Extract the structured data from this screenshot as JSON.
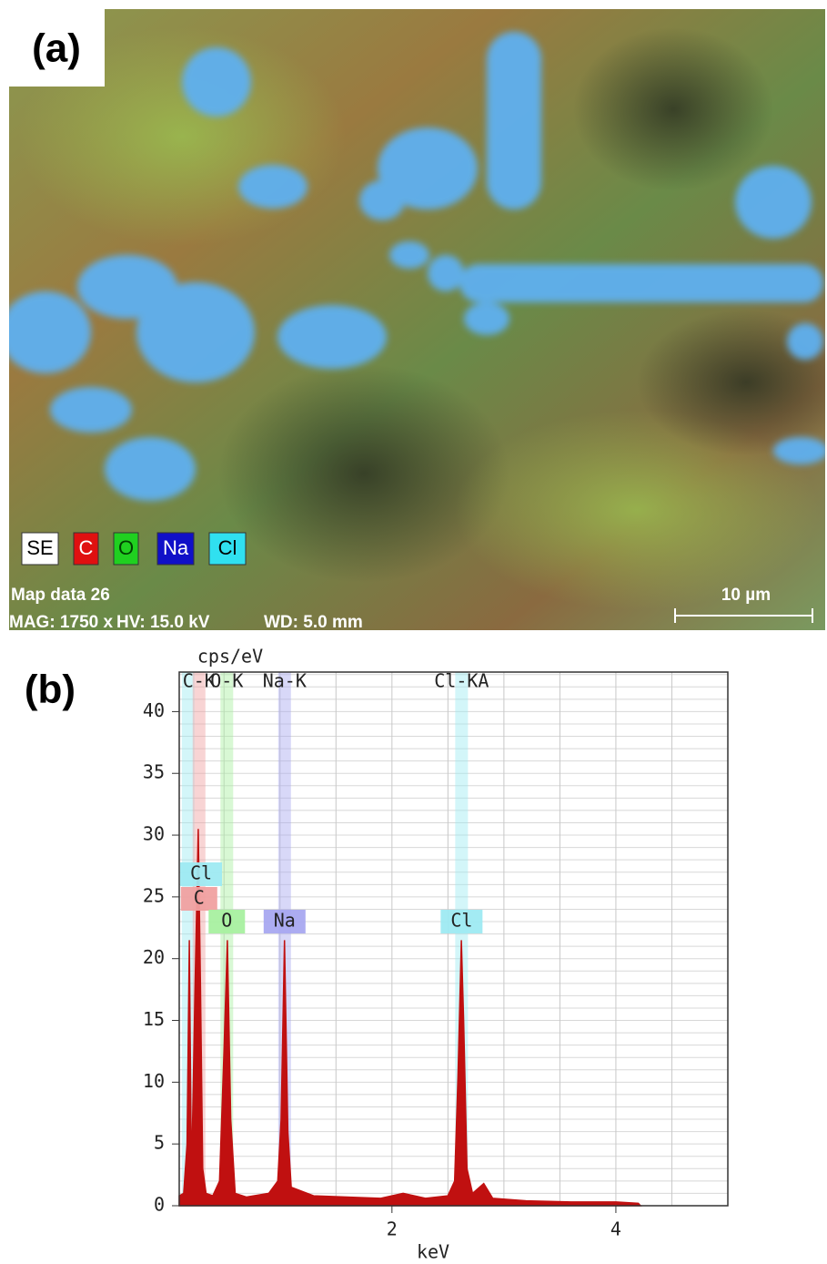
{
  "panel_a": {
    "label": "(a)",
    "legend": [
      {
        "text": "SE",
        "color": "#ffffff"
      },
      {
        "text": "C",
        "color": "#e01010"
      },
      {
        "text": "O",
        "color": "#20d020"
      },
      {
        "text": "Na",
        "color": "#1010c8"
      },
      {
        "text": "Cl",
        "color": "#30e0f0"
      }
    ],
    "map_title": "Map data 26",
    "mag": "MAG: 1750 x",
    "hv": "HV: 15.0 kV",
    "wd": "WD: 5.0 mm",
    "scale_bar": "10 µm"
  },
  "chart_data": {
    "type": "area",
    "panel_label": "(b)",
    "y_label": "cps/eV",
    "x_label": "keV",
    "xlim": [
      0.1,
      5.0
    ],
    "ylim": [
      0,
      43.2
    ],
    "xticks": [
      2,
      4
    ],
    "yticks": [
      0,
      5,
      10,
      15,
      20,
      25,
      30,
      35,
      40
    ],
    "grid": true,
    "xgrid": [
      0.5,
      1,
      1.5,
      2,
      2.5,
      3,
      3.5,
      4,
      4.5
    ],
    "ygrid": [
      1,
      2,
      3,
      4,
      5,
      6,
      7,
      8,
      9,
      10,
      11,
      12,
      13,
      14,
      15,
      16,
      17,
      18,
      19,
      20,
      21,
      22,
      23,
      24,
      25,
      26,
      27,
      28,
      29,
      30,
      31,
      32,
      33,
      34,
      35,
      36,
      37,
      38,
      39,
      40,
      41,
      42,
      43
    ],
    "color": "#c01010",
    "x": [
      0.1,
      0.14,
      0.17,
      0.19,
      0.21,
      0.24,
      0.27,
      0.29,
      0.31,
      0.34,
      0.4,
      0.46,
      0.5,
      0.53,
      0.56,
      0.6,
      0.7,
      0.9,
      0.98,
      1.01,
      1.04,
      1.07,
      1.1,
      1.3,
      1.6,
      1.9,
      2.1,
      2.3,
      2.5,
      2.56,
      2.59,
      2.62,
      2.64,
      2.67,
      2.72,
      2.82,
      2.9,
      3.2,
      3.6,
      4.0,
      4.2,
      4.22
    ],
    "values": [
      0.8,
      1,
      5,
      21.5,
      2,
      17,
      30.5,
      17.5,
      3,
      1,
      0.8,
      2,
      12.5,
      21.5,
      7,
      1,
      0.7,
      1,
      2,
      7,
      21.5,
      6,
      1.5,
      0.8,
      0.7,
      0.6,
      1,
      0.6,
      0.8,
      2,
      10.5,
      21.5,
      15,
      3,
      1,
      1.8,
      0.6,
      0.4,
      0.3,
      0.3,
      0.2,
      0
    ],
    "elements": [
      {
        "box": "Cl",
        "energy": 0.18,
        "color": "#9eeaf2"
      },
      {
        "line": "C-K",
        "box": "C",
        "energy": 0.277,
        "color": "#f0a0a0"
      },
      {
        "line": "O-K",
        "box": "O",
        "energy": 0.525,
        "color": "#a8f0a0"
      },
      {
        "line": "Na-K",
        "box": "Na",
        "energy": 1.041,
        "color": "#a8a8f0"
      },
      {
        "line": "Cl-KA",
        "box": "Cl",
        "energy": 2.622,
        "color": "#9eeaf2"
      }
    ]
  }
}
